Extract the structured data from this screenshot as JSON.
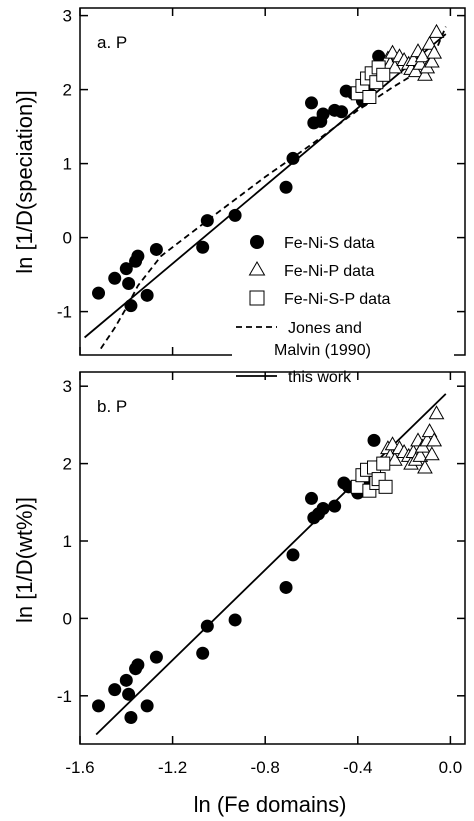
{
  "figure": {
    "x_axis_label": "ln (Fe domains)",
    "x_ticks": [
      "-1.6",
      "-1.2",
      "-0.8",
      "-0.4",
      "0.0"
    ],
    "y_ticks": [
      "3",
      "2",
      "1",
      "0",
      "-1"
    ]
  },
  "legend": {
    "items": [
      {
        "label": "Fe-Ni-S data",
        "marker": "filled-circle"
      },
      {
        "label": "Fe-Ni-P data",
        "marker": "open-triangle"
      },
      {
        "label": "Fe-Ni-S-P data",
        "marker": "open-square"
      },
      {
        "label": "Jones and\nMalvin (1990)",
        "marker": "dashed-line"
      },
      {
        "label": "this work",
        "marker": "solid-line"
      }
    ]
  },
  "chart_data": [
    {
      "type": "scatter",
      "panel_label": "a. P",
      "xlabel": "",
      "ylabel": "ln [1/D(speciation)]",
      "xlim": [
        -1.6,
        0.0
      ],
      "ylim": [
        -1.5,
        3.0
      ],
      "series": [
        {
          "name": "Fe-Ni-S data",
          "marker": "filled-circle",
          "points": [
            [
              -1.52,
              -0.75
            ],
            [
              -1.45,
              -0.55
            ],
            [
              -1.4,
              -0.42
            ],
            [
              -1.39,
              -0.62
            ],
            [
              -1.38,
              -0.92
            ],
            [
              -1.36,
              -0.32
            ],
            [
              -1.35,
              -0.25
            ],
            [
              -1.31,
              -0.78
            ],
            [
              -1.27,
              -0.16
            ],
            [
              -1.07,
              -0.13
            ],
            [
              -1.05,
              0.23
            ],
            [
              -0.93,
              0.3
            ],
            [
              -0.71,
              0.68
            ],
            [
              -0.68,
              1.07
            ],
            [
              -0.6,
              1.82
            ],
            [
              -0.59,
              1.55
            ],
            [
              -0.56,
              1.57
            ],
            [
              -0.55,
              1.67
            ],
            [
              -0.5,
              1.72
            ],
            [
              -0.47,
              1.7
            ],
            [
              -0.45,
              1.98
            ],
            [
              -0.42,
              1.95
            ],
            [
              -0.38,
              1.85
            ],
            [
              -0.35,
              2.05
            ],
            [
              -0.33,
              2.1
            ],
            [
              -0.31,
              2.45
            ]
          ]
        },
        {
          "name": "Fe-Ni-P data",
          "marker": "open-triangle",
          "points": [
            [
              -0.27,
              2.42
            ],
            [
              -0.26,
              2.35
            ],
            [
              -0.25,
              2.5
            ],
            [
              -0.24,
              2.3
            ],
            [
              -0.22,
              2.45
            ],
            [
              -0.2,
              2.4
            ],
            [
              -0.18,
              2.35
            ],
            [
              -0.17,
              2.28
            ],
            [
              -0.16,
              2.4
            ],
            [
              -0.15,
              2.25
            ],
            [
              -0.14,
              2.52
            ],
            [
              -0.13,
              2.35
            ],
            [
              -0.12,
              2.45
            ],
            [
              -0.11,
              2.2
            ],
            [
              -0.1,
              2.3
            ],
            [
              -0.09,
              2.62
            ],
            [
              -0.08,
              2.38
            ],
            [
              -0.07,
              2.5
            ],
            [
              -0.06,
              2.78
            ]
          ]
        },
        {
          "name": "Fe-Ni-S-P data",
          "marker": "open-square",
          "points": [
            [
              -0.4,
              1.95
            ],
            [
              -0.38,
              2.05
            ],
            [
              -0.36,
              2.15
            ],
            [
              -0.35,
              1.9
            ],
            [
              -0.34,
              2.22
            ],
            [
              -0.32,
              2.1
            ],
            [
              -0.31,
              2.3
            ],
            [
              -0.29,
              2.2
            ]
          ]
        }
      ],
      "lines": [
        {
          "name": "this work",
          "style": "solid",
          "x": [
            -1.58,
            -0.02
          ],
          "y": [
            -1.35,
            2.75
          ]
        },
        {
          "name": "Jones and Malvin (1990)",
          "style": "dashed",
          "x": [
            -1.51,
            -1.45,
            -1.4,
            -1.35,
            -1.25,
            -1.0,
            -0.8,
            -0.6,
            -0.4,
            -0.25,
            -0.15,
            -0.1,
            -0.06,
            -0.02
          ],
          "y": [
            -1.5,
            -1.22,
            -0.95,
            -0.65,
            -0.25,
            0.35,
            0.82,
            1.26,
            1.72,
            2.03,
            2.22,
            2.38,
            2.55,
            2.85
          ]
        }
      ]
    },
    {
      "type": "scatter",
      "panel_label": "b. P",
      "xlabel": "ln (Fe domains)",
      "ylabel": "ln [1/D(wt%)]",
      "xlim": [
        -1.6,
        0.0
      ],
      "ylim": [
        -1.5,
        3.0
      ],
      "series": [
        {
          "name": "Fe-Ni-S data",
          "marker": "filled-circle",
          "points": [
            [
              -1.52,
              -1.13
            ],
            [
              -1.45,
              -0.92
            ],
            [
              -1.4,
              -0.8
            ],
            [
              -1.39,
              -0.98
            ],
            [
              -1.38,
              -1.28
            ],
            [
              -1.36,
              -0.65
            ],
            [
              -1.35,
              -0.6
            ],
            [
              -1.31,
              -1.13
            ],
            [
              -1.27,
              -0.5
            ],
            [
              -1.07,
              -0.45
            ],
            [
              -1.05,
              -0.1
            ],
            [
              -0.93,
              -0.02
            ],
            [
              -0.71,
              0.4
            ],
            [
              -0.68,
              0.82
            ],
            [
              -0.6,
              1.55
            ],
            [
              -0.59,
              1.3
            ],
            [
              -0.57,
              1.35
            ],
            [
              -0.55,
              1.42
            ],
            [
              -0.5,
              1.45
            ],
            [
              -0.46,
              1.75
            ],
            [
              -0.44,
              1.7
            ],
            [
              -0.4,
              1.62
            ],
            [
              -0.37,
              1.72
            ],
            [
              -0.33,
              2.3
            ]
          ]
        },
        {
          "name": "Fe-Ni-P data",
          "marker": "open-triangle",
          "points": [
            [
              -0.27,
              2.2
            ],
            [
              -0.26,
              2.1
            ],
            [
              -0.25,
              2.25
            ],
            [
              -0.24,
              2.05
            ],
            [
              -0.22,
              2.2
            ],
            [
              -0.2,
              2.15
            ],
            [
              -0.18,
              2.1
            ],
            [
              -0.17,
              2.0
            ],
            [
              -0.16,
              2.15
            ],
            [
              -0.15,
              2.05
            ],
            [
              -0.14,
              2.3
            ],
            [
              -0.13,
              2.1
            ],
            [
              -0.12,
              2.22
            ],
            [
              -0.11,
              1.95
            ],
            [
              -0.1,
              2.3
            ],
            [
              -0.09,
              2.42
            ],
            [
              -0.08,
              2.12
            ],
            [
              -0.07,
              2.3
            ],
            [
              -0.06,
              2.65
            ]
          ]
        },
        {
          "name": "Fe-Ni-S-P data",
          "marker": "open-square",
          "points": [
            [
              -0.4,
              1.7
            ],
            [
              -0.38,
              1.85
            ],
            [
              -0.36,
              1.92
            ],
            [
              -0.35,
              1.65
            ],
            [
              -0.33,
              1.95
            ],
            [
              -0.32,
              1.75
            ],
            [
              -0.31,
              1.8
            ],
            [
              -0.29,
              2.0
            ],
            [
              -0.28,
              1.7
            ]
          ]
        }
      ],
      "lines": [
        {
          "name": "this work",
          "style": "solid",
          "x": [
            -1.53,
            -0.02
          ],
          "y": [
            -1.5,
            2.9
          ]
        }
      ]
    }
  ]
}
